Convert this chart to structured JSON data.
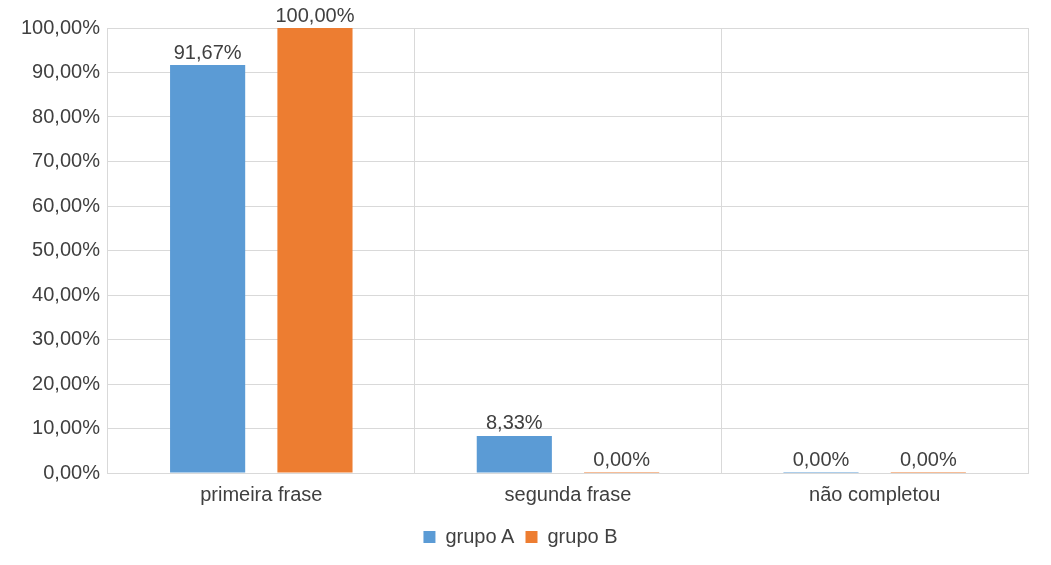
{
  "chart_data": {
    "type": "bar",
    "categories": [
      "primeira frase",
      "segunda frase",
      "não completou"
    ],
    "series": [
      {
        "name": "grupo A",
        "color": "#5b9bd5",
        "values": [
          91.67,
          8.33,
          0
        ],
        "value_labels": [
          "91,67%",
          "8,33%",
          "0,00%"
        ]
      },
      {
        "name": "grupo B",
        "color": "#ed7d31",
        "values": [
          100,
          0,
          0
        ],
        "value_labels": [
          "100,00%",
          "0,00%",
          "0,00%"
        ]
      }
    ],
    "ylim": [
      0,
      100
    ],
    "yticks": [
      {
        "value": 0,
        "label": "0,00%"
      },
      {
        "value": 10,
        "label": "10,00%"
      },
      {
        "value": 20,
        "label": "20,00%"
      },
      {
        "value": 30,
        "label": "30,00%"
      },
      {
        "value": 40,
        "label": "40,00%"
      },
      {
        "value": 50,
        "label": "50,00%"
      },
      {
        "value": 60,
        "label": "60,00%"
      },
      {
        "value": 70,
        "label": "70,00%"
      },
      {
        "value": 80,
        "label": "80,00%"
      },
      {
        "value": 90,
        "label": "90,00%"
      },
      {
        "value": 100,
        "label": "100,00%"
      }
    ],
    "grid": true,
    "legend": "bottom"
  }
}
